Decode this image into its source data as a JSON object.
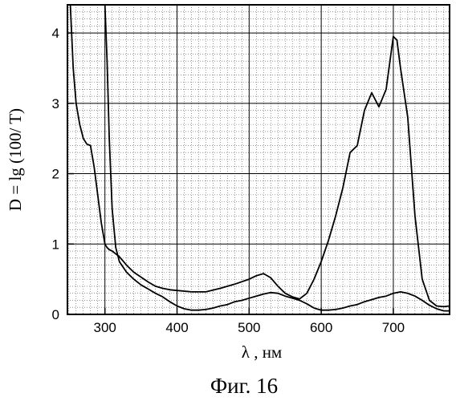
{
  "chart_data": {
    "type": "line",
    "caption": "Фиг. 16",
    "xlabel": "λ , нм",
    "ylabel": "D = lg (100/ T)",
    "xlim": [
      248,
      778
    ],
    "ylim": [
      0,
      4.4
    ],
    "x_ticks": [
      300,
      400,
      500,
      600,
      700
    ],
    "x_tick_labels": [
      "300",
      "400",
      "500",
      "600",
      "700"
    ],
    "y_ticks": [
      0,
      1,
      2,
      3,
      4
    ],
    "y_tick_labels": [
      "0",
      "1",
      "2",
      "3",
      "4"
    ],
    "grid": true,
    "minor_grid": true,
    "series": [
      {
        "x": [
          252,
          256,
          260,
          265,
          270,
          275,
          280,
          285,
          290,
          295,
          300,
          303,
          306,
          310,
          315,
          320,
          325,
          330,
          340,
          350,
          360,
          370,
          380,
          390,
          400,
          420,
          440,
          460,
          480,
          500,
          510,
          520,
          530,
          540,
          550,
          560,
          570,
          580,
          590,
          600,
          610,
          620,
          630,
          640,
          650,
          660,
          670,
          680,
          690,
          700,
          705,
          710,
          720,
          730,
          740,
          750,
          760,
          770,
          778
        ],
        "y": [
          4.4,
          3.5,
          3.0,
          2.7,
          2.5,
          2.42,
          2.4,
          2.1,
          1.7,
          1.3,
          1.0,
          0.95,
          0.92,
          0.9,
          0.86,
          0.82,
          0.76,
          0.7,
          0.6,
          0.53,
          0.46,
          0.4,
          0.37,
          0.35,
          0.34,
          0.32,
          0.32,
          0.37,
          0.43,
          0.5,
          0.55,
          0.58,
          0.52,
          0.4,
          0.3,
          0.25,
          0.22,
          0.3,
          0.5,
          0.75,
          1.05,
          1.4,
          1.8,
          2.3,
          2.4,
          2.9,
          3.15,
          2.95,
          3.2,
          3.95,
          3.9,
          3.5,
          2.8,
          1.4,
          0.5,
          0.2,
          0.12,
          0.11,
          0.12
        ]
      },
      {
        "x": [
          300,
          303,
          306,
          310,
          315,
          320,
          330,
          340,
          350,
          360,
          370,
          380,
          390,
          400,
          410,
          420,
          430,
          440,
          450,
          460,
          470,
          480,
          490,
          500,
          510,
          520,
          530,
          540,
          550,
          560,
          570,
          580,
          590,
          600,
          610,
          620,
          630,
          640,
          650,
          660,
          670,
          680,
          690,
          700,
          710,
          720,
          730,
          740,
          750,
          760,
          770,
          778
        ],
        "y": [
          4.4,
          3.6,
          2.5,
          1.5,
          0.95,
          0.75,
          0.6,
          0.5,
          0.42,
          0.36,
          0.3,
          0.25,
          0.18,
          0.12,
          0.08,
          0.06,
          0.06,
          0.07,
          0.09,
          0.12,
          0.14,
          0.18,
          0.2,
          0.23,
          0.26,
          0.29,
          0.31,
          0.3,
          0.26,
          0.23,
          0.2,
          0.15,
          0.09,
          0.06,
          0.06,
          0.07,
          0.09,
          0.12,
          0.14,
          0.18,
          0.21,
          0.24,
          0.26,
          0.3,
          0.32,
          0.3,
          0.26,
          0.2,
          0.13,
          0.08,
          0.05,
          0.05
        ]
      }
    ]
  }
}
